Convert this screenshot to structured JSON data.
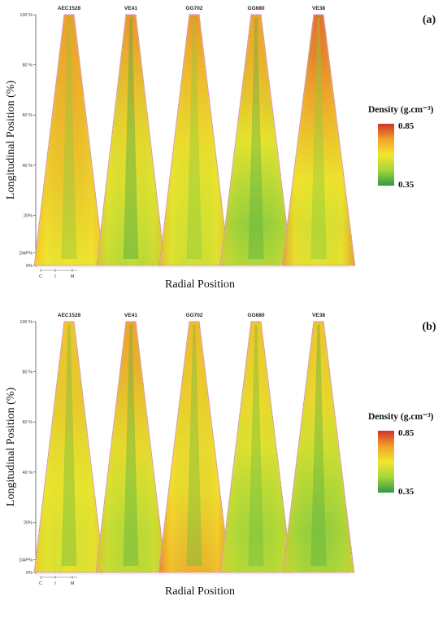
{
  "chart_data": [
    {
      "type": "heatmap",
      "panel_label": "(a)",
      "title": "",
      "xlabel": "Radial Position",
      "ylabel": "Longitudinal Position (%)",
      "x_ticks": [
        "C",
        "I",
        "M"
      ],
      "y_ticks": [
        "0%",
        "DAP%",
        "20%",
        "40 %",
        "60 %",
        "80 %",
        "100 %"
      ],
      "y_tick_values": [
        0,
        5,
        20,
        40,
        60,
        80,
        100
      ],
      "legend_title": "Density (g.cm⁻³)",
      "colorscale": {
        "min": 0.35,
        "max": 0.85,
        "min_label": "0.35",
        "max_label": "0.85",
        "colors": [
          "#2e9a47",
          "#a6d63a",
          "#f2e62c",
          "#f3a12a",
          "#d2312a"
        ]
      },
      "series": [
        {
          "name": "AEC1528",
          "profile": [
            0.6,
            0.63,
            0.66,
            0.68,
            0.7,
            0.72,
            0.73
          ],
          "core": 0.45,
          "edge": 0.72,
          "cone_base_width": 0.6
        },
        {
          "name": "VE41",
          "profile": [
            0.52,
            0.55,
            0.58,
            0.62,
            0.66,
            0.7,
            0.74
          ],
          "core": 0.38,
          "edge": 0.72,
          "cone_base_width": 0.55
        },
        {
          "name": "GG702",
          "profile": [
            0.55,
            0.56,
            0.58,
            0.62,
            0.66,
            0.7,
            0.74
          ],
          "core": 0.45,
          "edge": 0.74,
          "cone_base_width": 0.6
        },
        {
          "name": "GG680",
          "profile": [
            0.5,
            0.46,
            0.52,
            0.6,
            0.66,
            0.7,
            0.72
          ],
          "core": 0.4,
          "edge": 0.66,
          "cone_base_width": 0.65
        },
        {
          "name": "VE38",
          "profile": [
            0.58,
            0.56,
            0.6,
            0.66,
            0.72,
            0.76,
            0.78
          ],
          "core": 0.45,
          "edge": 0.8,
          "cone_base_width": 0.7
        }
      ]
    },
    {
      "type": "heatmap",
      "panel_label": "(b)",
      "title": "",
      "xlabel": "Radial Position",
      "ylabel": "Longitudinal Position (%)",
      "x_ticks": [
        "C",
        "I",
        "M"
      ],
      "y_ticks": [
        "0%",
        "DAP%",
        "20%",
        "40 %",
        "60 %",
        "80 %",
        "100 %"
      ],
      "y_tick_values": [
        0,
        5,
        20,
        40,
        60,
        80,
        100
      ],
      "legend_title": "Density (g.cm⁻³)",
      "colorscale": {
        "min": 0.35,
        "max": 0.85,
        "min_label": "0.35",
        "max_label": "0.85",
        "colors": [
          "#2e9a47",
          "#a6d63a",
          "#f2e62c",
          "#f3a12a",
          "#d2312a"
        ]
      },
      "series": [
        {
          "name": "AEC1528",
          "profile": [
            0.58,
            0.58,
            0.6,
            0.62,
            0.65,
            0.66,
            0.66
          ],
          "core": 0.42,
          "edge": 0.7,
          "cone_base_width": 0.6
        },
        {
          "name": "VE41",
          "profile": [
            0.52,
            0.52,
            0.56,
            0.62,
            0.66,
            0.7,
            0.72
          ],
          "core": 0.4,
          "edge": 0.72,
          "cone_base_width": 0.6
        },
        {
          "name": "GG702",
          "profile": [
            0.7,
            0.66,
            0.62,
            0.62,
            0.64,
            0.66,
            0.68
          ],
          "core": 0.42,
          "edge": 0.8,
          "cone_base_width": 0.65
        },
        {
          "name": "GG680",
          "profile": [
            0.5,
            0.48,
            0.52,
            0.58,
            0.62,
            0.64,
            0.66
          ],
          "core": 0.42,
          "edge": 0.66,
          "cone_base_width": 0.65
        },
        {
          "name": "VE38",
          "profile": [
            0.48,
            0.46,
            0.5,
            0.56,
            0.62,
            0.64,
            0.66
          ],
          "core": 0.4,
          "edge": 0.66,
          "cone_base_width": 0.65
        }
      ]
    }
  ]
}
